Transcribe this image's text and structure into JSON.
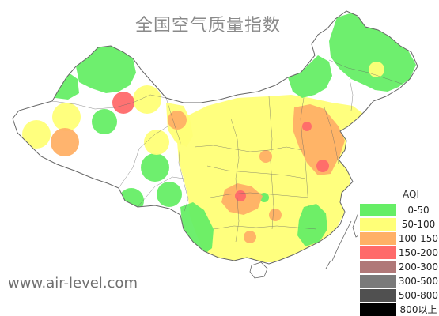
{
  "title": "全国空气质量指数",
  "watermark": "www.air-level.com",
  "legend": {
    "title": "AQI",
    "items": [
      {
        "label": "0-50",
        "color": "#66ee66"
      },
      {
        "label": "50-100",
        "color": "#ffff77"
      },
      {
        "label": "100-150",
        "color": "#ffb066"
      },
      {
        "label": "150-200",
        "color": "#ff6a6a"
      },
      {
        "label": "200-300",
        "color": "#b07878"
      },
      {
        "label": "300-500",
        "color": "#7a7a7a"
      },
      {
        "label": "500-800",
        "color": "#505050"
      },
      {
        "label": "800以上",
        "color": "#000000"
      }
    ]
  },
  "map_colors": {
    "land": "#ffffff",
    "border": "#666666",
    "good": "#66ee66",
    "moderate": "#ffff77",
    "sensitive": "#ffb066",
    "unhealthy": "#ff6a6a"
  }
}
